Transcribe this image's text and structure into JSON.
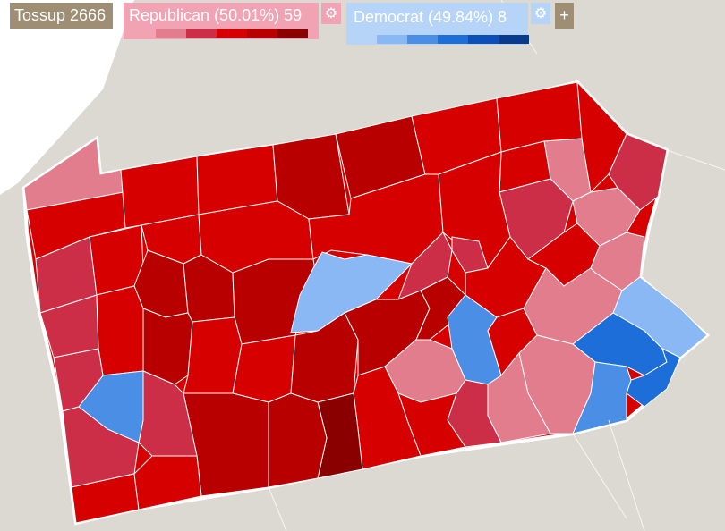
{
  "legend": {
    "tossup": {
      "label": "Tossup 2666",
      "color": "#9e8e74"
    },
    "republican": {
      "label": "Republican (50.01%) 59",
      "color": "#f2a3b3",
      "shades": [
        "#e27d8e",
        "#cc2e48",
        "#d60000",
        "#b80000",
        "#8a0000"
      ]
    },
    "democrat": {
      "label": "Democrat (49.84%) 8",
      "color": "#b6d3f8",
      "shades": [
        "#8ab8f5",
        "#4a8ee6",
        "#1d6ed8",
        "#0d4fb8",
        "#0a3a8e"
      ]
    },
    "gear_icon": "gear-icon",
    "add_label": "+"
  },
  "map": {
    "background": "#dcd8d2",
    "water": "#ffffff",
    "state": "Pennsylvania"
  }
}
